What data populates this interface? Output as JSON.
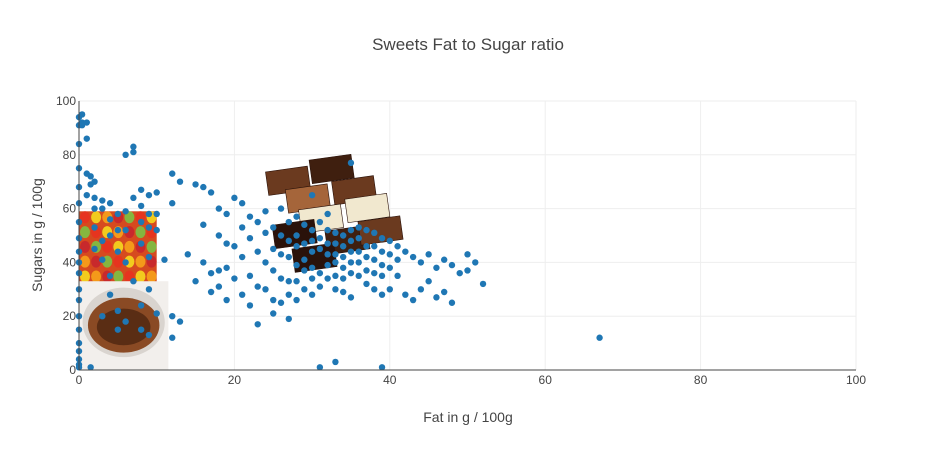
{
  "chart_data": {
    "type": "scatter",
    "title": "Sweets Fat to Sugar ratio",
    "xlabel": "Fat in g / 100g",
    "ylabel": "Sugars in g / 100g",
    "xlim": [
      0,
      100
    ],
    "ylim": [
      0,
      100
    ],
    "xticks": [
      "0",
      "20",
      "40",
      "60",
      "80",
      "100"
    ],
    "yticks": [
      "0",
      "20",
      "40",
      "60",
      "80",
      "100"
    ],
    "grid": true,
    "marker_color": "#1f77b4",
    "images": [
      {
        "name": "gummy-bears",
        "x": 0,
        "y": 59,
        "width": 10,
        "height": 33,
        "colors": [
          "#e8321f",
          "#f7a21a",
          "#7cc242",
          "#f5d91e",
          "#c7262e"
        ]
      },
      {
        "name": "chocolate-spread",
        "x": 0,
        "y": 33,
        "width": 11.5,
        "height": 34,
        "colors": [
          "#5a2d14",
          "#8a4a24",
          "#d9d4cf",
          "#f2efec"
        ]
      },
      {
        "name": "chocolate-bars",
        "x": 24,
        "y": 78,
        "width": 17,
        "height": 44,
        "colors": [
          "#6b3a1f",
          "#3f1f0f",
          "#f1e8cf",
          "#a5653a",
          "#2a120a"
        ]
      }
    ],
    "series": [
      {
        "x": [
          0,
          0,
          0,
          0,
          0,
          0,
          0,
          0,
          0,
          0,
          0,
          0,
          0,
          0,
          0,
          0,
          0,
          0,
          0,
          0,
          0.4,
          0.4,
          0.4,
          1,
          1,
          1,
          1,
          1.5,
          1.5,
          1.5,
          2,
          2,
          2,
          2,
          2,
          3,
          3,
          3,
          3,
          3,
          4,
          4,
          4,
          4,
          4,
          5,
          5,
          5,
          5,
          5,
          6,
          6,
          6,
          6,
          6,
          7,
          7,
          7,
          7,
          8,
          8,
          8,
          8,
          8,
          8,
          9,
          9,
          9,
          9,
          9,
          9,
          10,
          10,
          10,
          10,
          11,
          12,
          12,
          12,
          12,
          13,
          13,
          14,
          15,
          15,
          16,
          16,
          16,
          17,
          17,
          17,
          18,
          18,
          18,
          18,
          19,
          19,
          19,
          19,
          20,
          20,
          20,
          21,
          21,
          21,
          21,
          22,
          22,
          22,
          22,
          23,
          23,
          23,
          23,
          24,
          24,
          24,
          24,
          25,
          25,
          25,
          25,
          25,
          26,
          26,
          26,
          26,
          26,
          27,
          27,
          27,
          27,
          27,
          27,
          28,
          28,
          28,
          28,
          28,
          28,
          29,
          29,
          29,
          29,
          29,
          30,
          30,
          30,
          30,
          30,
          30,
          30,
          31,
          31,
          31,
          31,
          31,
          32,
          32,
          32,
          32,
          32,
          32,
          33,
          33,
          33,
          33,
          33,
          33,
          34,
          34,
          34,
          34,
          34,
          34,
          35,
          35,
          35,
          35,
          35,
          35,
          36,
          36,
          36,
          36,
          36,
          37,
          37,
          37,
          37,
          37,
          38,
          38,
          38,
          38,
          38,
          39,
          39,
          39,
          39,
          39,
          40,
          40,
          40,
          40,
          41,
          41,
          41,
          42,
          42,
          43,
          43,
          44,
          44,
          45,
          45,
          46,
          46,
          47,
          47,
          48,
          48,
          49,
          50,
          50,
          51,
          52,
          67,
          31,
          33,
          35,
          39
        ],
        "y": [
          94,
          91,
          84,
          75,
          68,
          62,
          55,
          49,
          44,
          40,
          36,
          30,
          26,
          20,
          15,
          10,
          7,
          4,
          2,
          1,
          95,
          91,
          92,
          92,
          86,
          73,
          65,
          69,
          72,
          1,
          70,
          64,
          60,
          53,
          45,
          63,
          60,
          48,
          41,
          20,
          62,
          56,
          50,
          35,
          28,
          58,
          52,
          44,
          22,
          15,
          80,
          59,
          52,
          40,
          18,
          81,
          83,
          64,
          33,
          67,
          61,
          55,
          47,
          24,
          15,
          65,
          58,
          53,
          42,
          30,
          13,
          66,
          58,
          52,
          21,
          41,
          73,
          62,
          20,
          12,
          70,
          18,
          43,
          69,
          33,
          68,
          54,
          40,
          66,
          36,
          29,
          60,
          50,
          37,
          31,
          58,
          47,
          38,
          26,
          64,
          46,
          34,
          62,
          53,
          42,
          28,
          57,
          49,
          35,
          24,
          55,
          44,
          31,
          17,
          59,
          51,
          40,
          30,
          53,
          45,
          37,
          26,
          21,
          60,
          50,
          43,
          34,
          25,
          55,
          48,
          42,
          33,
          28,
          19,
          57,
          50,
          46,
          39,
          33,
          26,
          54,
          47,
          41,
          37,
          30,
          65,
          52,
          48,
          44,
          38,
          34,
          28,
          55,
          49,
          45,
          36,
          31,
          58,
          52,
          47,
          43,
          39,
          34,
          51,
          47,
          43,
          40,
          35,
          30,
          50,
          46,
          42,
          38,
          34,
          29,
          52,
          48,
          44,
          40,
          36,
          27,
          53,
          49,
          44,
          40,
          35,
          52,
          46,
          42,
          37,
          32,
          51,
          46,
          41,
          36,
          30,
          49,
          44,
          39,
          35,
          28,
          48,
          43,
          38,
          30,
          46,
          41,
          35,
          44,
          28,
          42,
          26,
          40,
          30,
          43,
          33,
          38,
          27,
          41,
          29,
          39,
          25,
          36,
          43,
          37,
          40,
          32,
          12,
          1,
          3,
          77,
          1
        ]
      }
    ]
  }
}
